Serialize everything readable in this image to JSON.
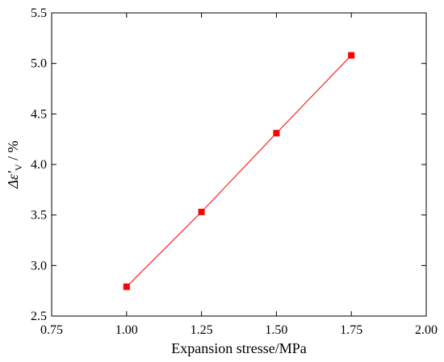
{
  "chart_data": {
    "type": "line",
    "title": "",
    "xlabel": "Expansion stresse/MPa",
    "ylabel_parts": {
      "main": "Δε′",
      "sub": "V",
      "unit": " / %"
    },
    "xlim": [
      0.75,
      2.0
    ],
    "ylim": [
      2.5,
      5.5
    ],
    "xticks": [
      "0.75",
      "1.00",
      "1.25",
      "1.50",
      "1.75",
      "2.00"
    ],
    "yticks": [
      "2.5",
      "3.0",
      "3.5",
      "4.0",
      "4.5",
      "5.0",
      "5.5"
    ],
    "grid": false,
    "legend": "none",
    "series": [
      {
        "marker": "square",
        "color": "#ff0000",
        "x": [
          1.0,
          1.25,
          1.5,
          1.75
        ],
        "y": [
          2.79,
          3.53,
          4.31,
          5.08
        ]
      }
    ]
  }
}
